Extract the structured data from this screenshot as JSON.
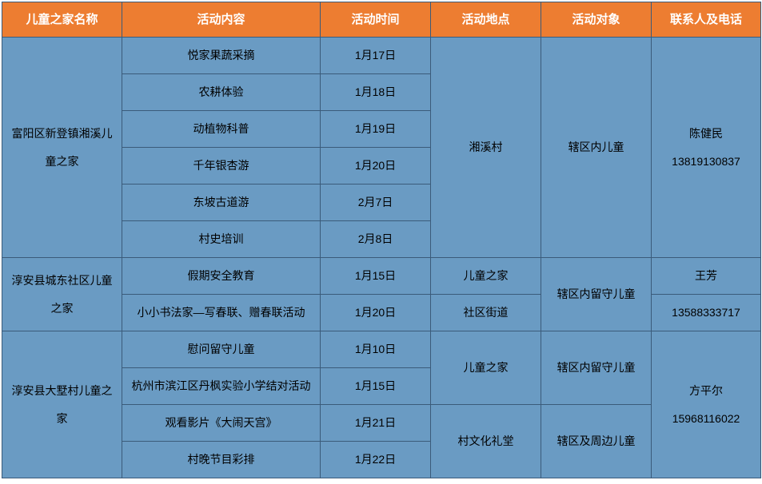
{
  "colors": {
    "header_bg": "#ed7d31",
    "header_text": "#ffffff",
    "cell_bg": "#6a9bc3",
    "cell_text": "#000000",
    "border": "#3b5b7a"
  },
  "headers": {
    "name": "儿童之家名称",
    "content": "活动内容",
    "time": "活动时间",
    "place": "活动地点",
    "target": "活动对象",
    "contact": "联系人及电话"
  },
  "group1": {
    "name_l1": "富阳区新登镇湘溪儿",
    "name_l2": "童之家",
    "place": "湘溪村",
    "target": "辖区内儿童",
    "contact_name": "陈健民",
    "contact_phone": "13819130837",
    "rows": [
      {
        "content": "悦家果蔬采摘",
        "time": "1月17日"
      },
      {
        "content": "农耕体验",
        "time": "1月18日"
      },
      {
        "content": "动植物科普",
        "time": "1月19日"
      },
      {
        "content": "千年银杏游",
        "time": "1月20日"
      },
      {
        "content": "东坡古道游",
        "time": "2月7日"
      },
      {
        "content": "村史培训",
        "time": "2月8日"
      }
    ]
  },
  "group2": {
    "name_l1": "淳安县城东社区儿童",
    "name_l2": "之家",
    "target": "辖区内留守儿童",
    "contact_name": "王芳",
    "contact_phone": "13588333717",
    "rows": [
      {
        "content": "假期安全教育",
        "time": "1月15日",
        "place": "儿童之家"
      },
      {
        "content": "小小书法家—写春联、赠春联活动",
        "time": "1月20日",
        "place": "社区街道"
      }
    ]
  },
  "group3": {
    "name_l1": "淳安县大墅村儿童之",
    "name_l2": "家",
    "contact_name": "方平尔",
    "contact_phone": "15968116022",
    "sub1": {
      "place": "儿童之家",
      "target": "辖区内留守儿童",
      "rows": [
        {
          "content": "慰问留守儿童",
          "time": "1月10日"
        },
        {
          "content": "杭州市滨江区丹枫实验小学结对活动",
          "time": "1月15日"
        }
      ]
    },
    "sub2": {
      "place": "村文化礼堂",
      "target": "辖区及周边儿童",
      "rows": [
        {
          "content": "观看影片《大闹天宫》",
          "time": "1月21日"
        },
        {
          "content": "村晚节目彩排",
          "time": "1月22日"
        }
      ]
    }
  }
}
